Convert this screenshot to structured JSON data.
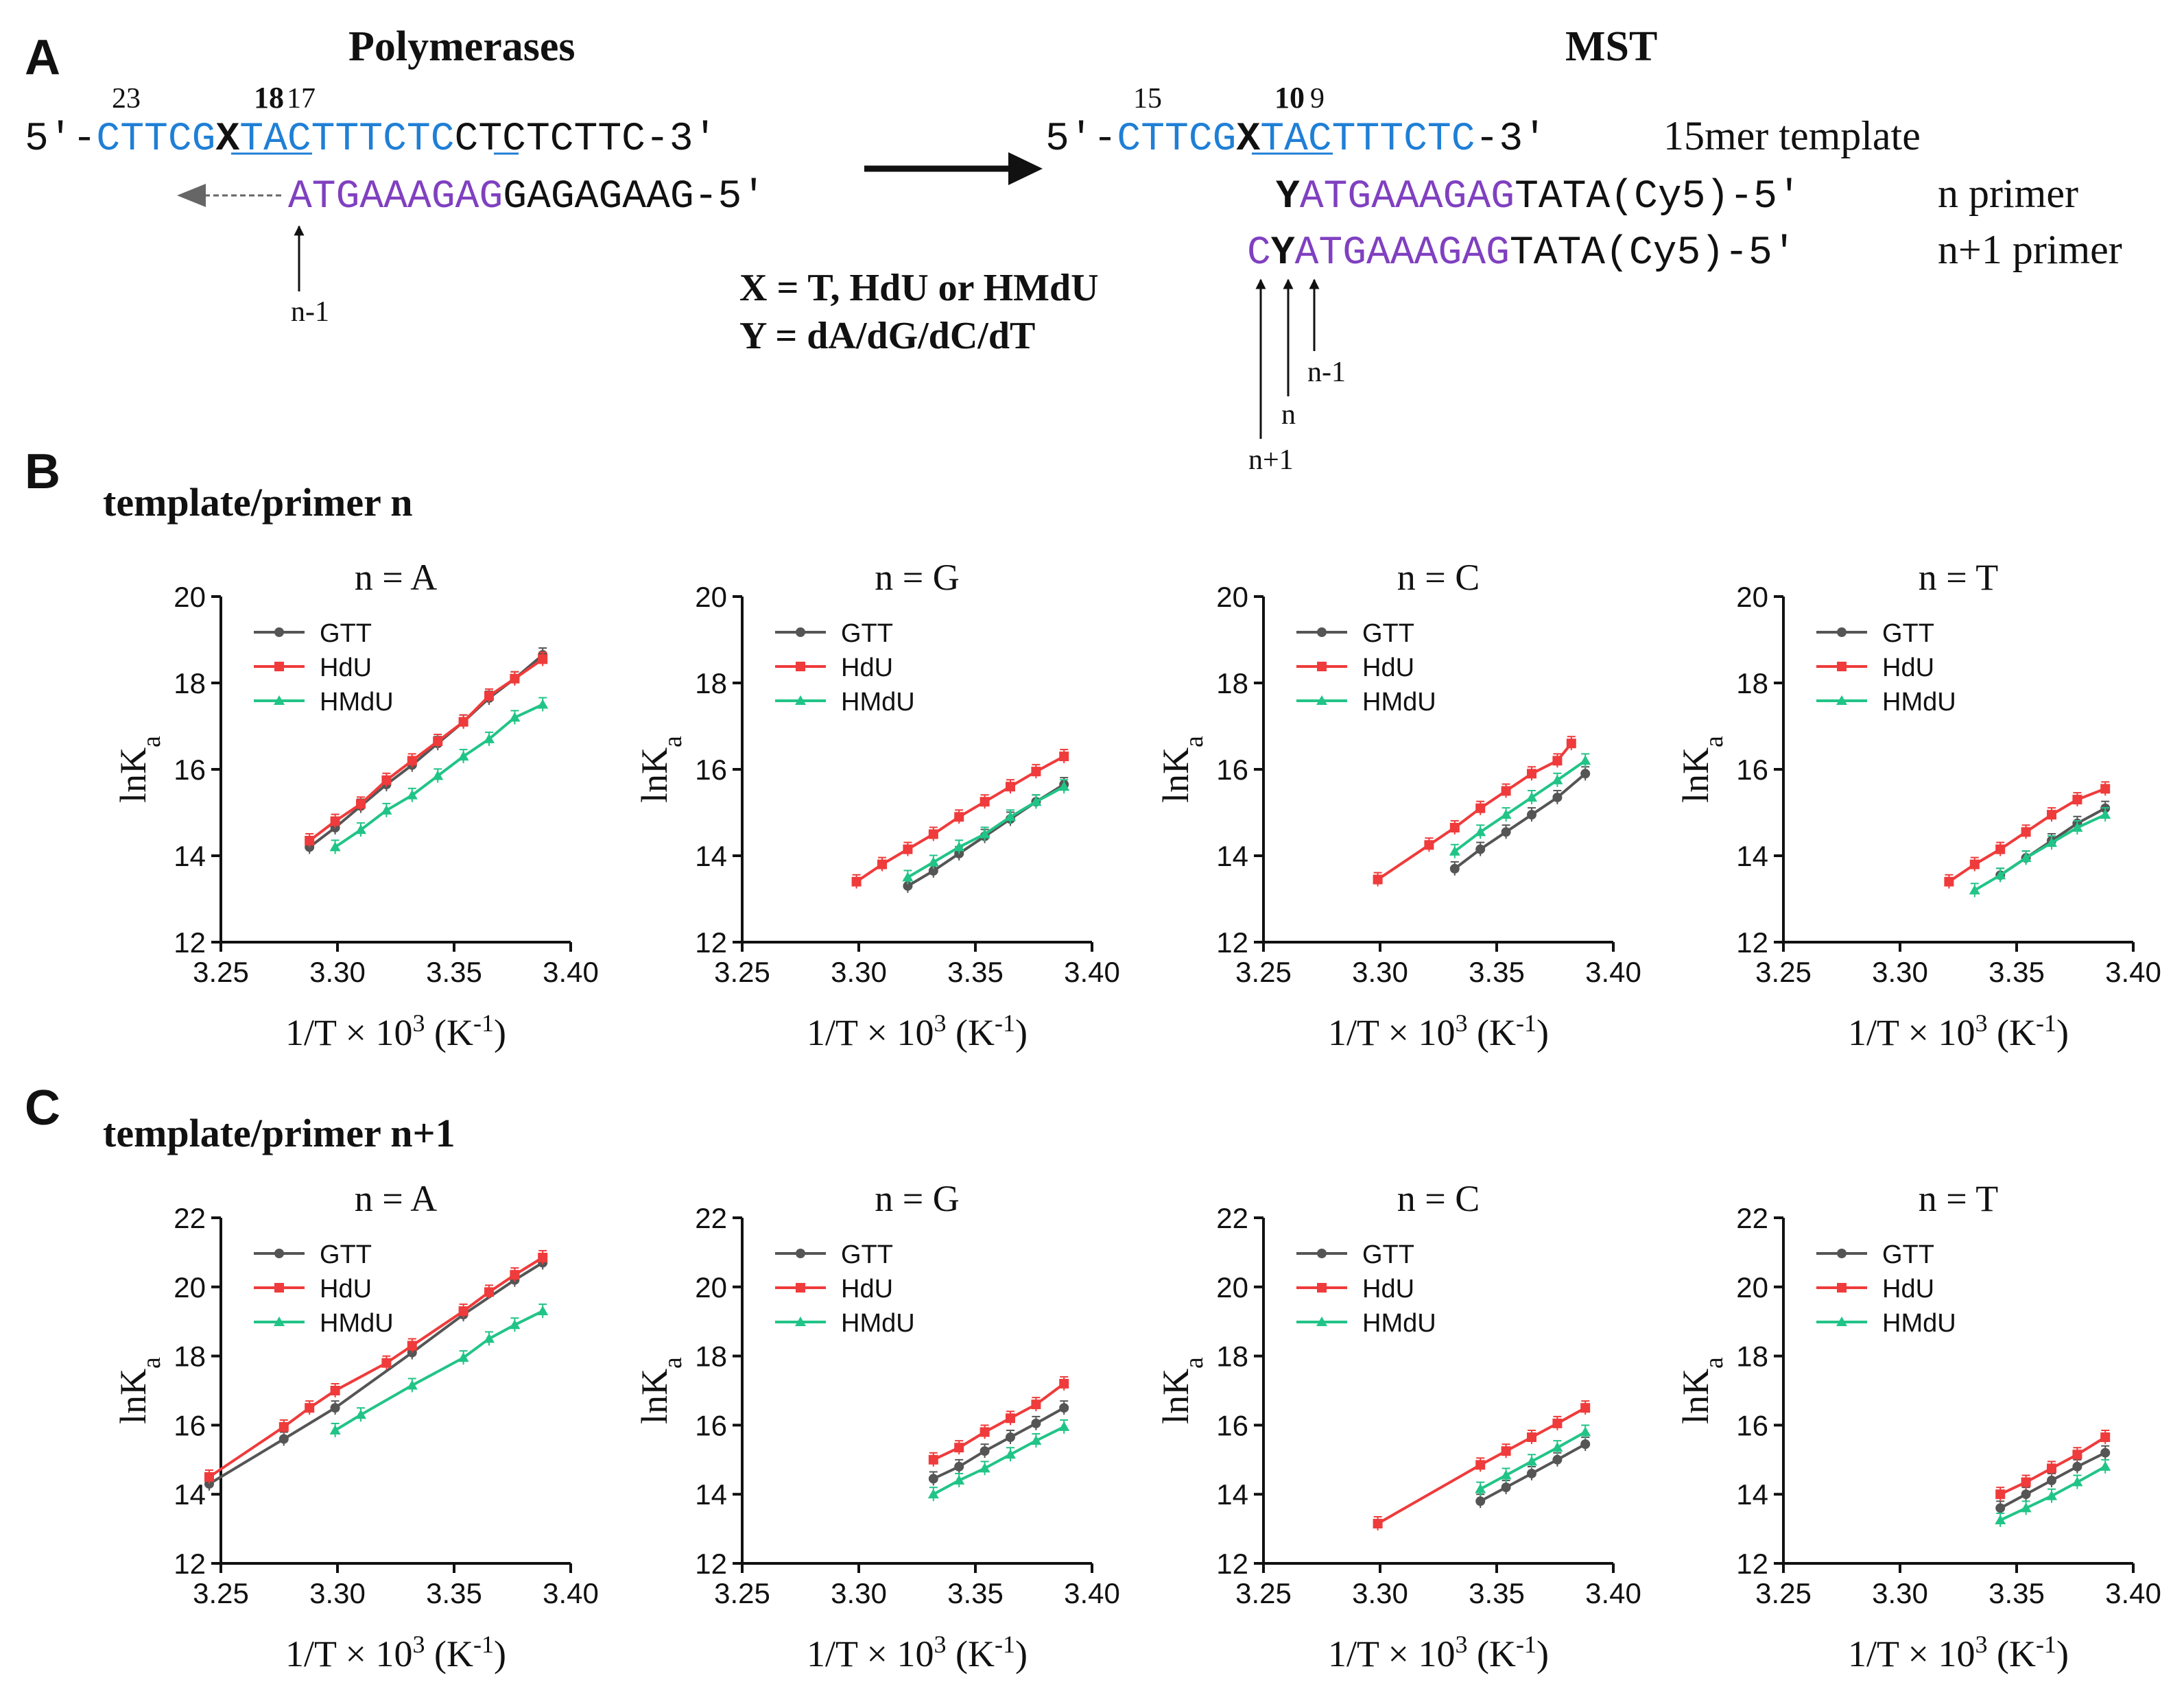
{
  "colors": {
    "gtt": "#555555",
    "hdu": "#ef3b3b",
    "hmdu": "#21c487",
    "blue": "#1f7fd6",
    "purple": "#8040c0",
    "black": "#111111"
  },
  "panelA": {
    "label": "A",
    "poly_title": "Polymerases",
    "mst_title": "MST",
    "poly": {
      "num23": "23",
      "num18": "18",
      "num17": "17",
      "t_prefix": "5'-",
      "t_blue1": "CTTCG",
      "t_x": "X",
      "t_blue2": "TACTTTCTC",
      "t_black": "CTCTCTTC-3'",
      "p_purple": "ATGAAAGAG",
      "p_black": "GAGAGAAG-5'",
      "arrow_label": "n-1"
    },
    "mst": {
      "num15": "15",
      "num10": "10",
      "num9": "9",
      "t_prefix": "5'-",
      "t_blue1": "CTTCG",
      "t_x": "X",
      "t_blue2": "TACTTTCTC",
      "t_black": "-3'",
      "t_desc": "15mer template",
      "n_y": "Y",
      "n_purple": "ATGAAAGAG",
      "n_black": "TATA(Cy5)-5'",
      "n_desc": "n primer",
      "n1_c": "C",
      "n1_y": "Y",
      "n1_purple": "ATGAAAGAG",
      "n1_black": "TATA(Cy5)-5'",
      "n1_desc": "n+1 primer",
      "lab_nm1": "n-1",
      "lab_n": "n",
      "lab_np1": "n+1"
    },
    "def_x": "X = T, HdU or HMdU",
    "def_y": "Y = dA/dG/dC/dT"
  },
  "panelB": {
    "label": "B",
    "title": "template/primer n"
  },
  "panelC": {
    "label": "C",
    "title": "template/primer n+1"
  },
  "chart_data": [
    {
      "type": "line",
      "panel": "B",
      "title": "n = A",
      "xlabel": "1/T × 10³ (K⁻¹)",
      "ylabel": "lnKa",
      "xlim": [
        3.25,
        3.4
      ],
      "ylim": [
        12,
        20
      ],
      "xticks": [
        "3.25",
        "3.30",
        "3.35",
        "3.40"
      ],
      "yticks": [
        "12",
        "14",
        "16",
        "18",
        "20"
      ],
      "series": [
        {
          "name": "GTT",
          "key": "gtt",
          "x": [
            3.288,
            3.299,
            3.31,
            3.321,
            3.332,
            3.343,
            3.354,
            3.365,
            3.376,
            3.388
          ],
          "y": [
            14.2,
            14.65,
            15.15,
            15.65,
            16.1,
            16.6,
            17.1,
            17.65,
            18.1,
            18.65
          ]
        },
        {
          "name": "HdU",
          "key": "hdu",
          "x": [
            3.288,
            3.299,
            3.31,
            3.321,
            3.332,
            3.343,
            3.354,
            3.365,
            3.376,
            3.388
          ],
          "y": [
            14.35,
            14.8,
            15.2,
            15.75,
            16.2,
            16.65,
            17.1,
            17.7,
            18.1,
            18.55
          ]
        },
        {
          "name": "HMdU",
          "key": "hmdu",
          "x": [
            3.299,
            3.31,
            3.321,
            3.332,
            3.343,
            3.354,
            3.365,
            3.376,
            3.388
          ],
          "y": [
            14.2,
            14.6,
            15.05,
            15.4,
            15.85,
            16.3,
            16.7,
            17.2,
            17.5
          ]
        }
      ]
    },
    {
      "type": "line",
      "panel": "B",
      "title": "n = G",
      "xlabel": "1/T × 10³ (K⁻¹)",
      "ylabel": "lnKa",
      "xlim": [
        3.25,
        3.4
      ],
      "ylim": [
        12,
        20
      ],
      "xticks": [
        "3.25",
        "3.30",
        "3.35",
        "3.40"
      ],
      "yticks": [
        "12",
        "14",
        "16",
        "18",
        "20"
      ],
      "series": [
        {
          "name": "GTT",
          "key": "gtt",
          "x": [
            3.321,
            3.332,
            3.343,
            3.354,
            3.365,
            3.376,
            3.388
          ],
          "y": [
            13.3,
            13.65,
            14.05,
            14.45,
            14.85,
            15.25,
            15.65
          ]
        },
        {
          "name": "HdU",
          "key": "hdu",
          "x": [
            3.299,
            3.31,
            3.321,
            3.332,
            3.343,
            3.354,
            3.365,
            3.376,
            3.388
          ],
          "y": [
            13.4,
            13.8,
            14.15,
            14.5,
            14.9,
            15.25,
            15.6,
            15.95,
            16.3
          ]
        },
        {
          "name": "HMdU",
          "key": "hmdu",
          "x": [
            3.321,
            3.332,
            3.343,
            3.354,
            3.365,
            3.376,
            3.388
          ],
          "y": [
            13.5,
            13.85,
            14.2,
            14.5,
            14.9,
            15.25,
            15.6
          ]
        }
      ]
    },
    {
      "type": "line",
      "panel": "B",
      "title": "n = C",
      "xlabel": "1/T × 10³ (K⁻¹)",
      "ylabel": "lnKa",
      "xlim": [
        3.25,
        3.4
      ],
      "ylim": [
        12,
        20
      ],
      "xticks": [
        "3.25",
        "3.30",
        "3.35",
        "3.40"
      ],
      "yticks": [
        "12",
        "14",
        "16",
        "18",
        "20"
      ],
      "series": [
        {
          "name": "GTT",
          "key": "gtt",
          "x": [
            3.332,
            3.343,
            3.354,
            3.365,
            3.376,
            3.388
          ],
          "y": [
            13.7,
            14.15,
            14.55,
            14.95,
            15.35,
            15.9
          ]
        },
        {
          "name": "HdU",
          "key": "hdu",
          "x": [
            3.299,
            3.321,
            3.332,
            3.343,
            3.354,
            3.365,
            3.376,
            3.382
          ],
          "y": [
            13.45,
            14.25,
            14.65,
            15.1,
            15.5,
            15.9,
            16.2,
            16.6
          ]
        },
        {
          "name": "HMdU",
          "key": "hmdu",
          "x": [
            3.332,
            3.343,
            3.354,
            3.365,
            3.376,
            3.388
          ],
          "y": [
            14.1,
            14.55,
            14.95,
            15.35,
            15.75,
            16.2
          ]
        }
      ]
    },
    {
      "type": "line",
      "panel": "B",
      "title": "n = T",
      "xlabel": "1/T × 10³ (K⁻¹)",
      "ylabel": "lnKa",
      "xlim": [
        3.25,
        3.4
      ],
      "ylim": [
        12,
        20
      ],
      "xticks": [
        "3.25",
        "3.30",
        "3.35",
        "3.40"
      ],
      "yticks": [
        "12",
        "14",
        "16",
        "18",
        "20"
      ],
      "series": [
        {
          "name": "GTT",
          "key": "gtt",
          "x": [
            3.343,
            3.354,
            3.365,
            3.376,
            3.388
          ],
          "y": [
            13.55,
            13.95,
            14.35,
            14.75,
            15.1
          ]
        },
        {
          "name": "HdU",
          "key": "hdu",
          "x": [
            3.321,
            3.332,
            3.343,
            3.354,
            3.365,
            3.376,
            3.388
          ],
          "y": [
            13.4,
            13.8,
            14.15,
            14.55,
            14.95,
            15.3,
            15.55
          ]
        },
        {
          "name": "HMdU",
          "key": "hmdu",
          "x": [
            3.332,
            3.343,
            3.354,
            3.365,
            3.376,
            3.388
          ],
          "y": [
            13.2,
            13.55,
            13.95,
            14.3,
            14.65,
            14.95
          ]
        }
      ]
    },
    {
      "type": "line",
      "panel": "C",
      "title": "n = A",
      "xlabel": "1/T × 10³ (K⁻¹)",
      "ylabel": "lnKa",
      "xlim": [
        3.25,
        3.4
      ],
      "ylim": [
        12,
        22
      ],
      "xticks": [
        "3.25",
        "3.30",
        "3.35",
        "3.40"
      ],
      "yticks": [
        "12",
        "14",
        "16",
        "18",
        "20",
        "22"
      ],
      "series": [
        {
          "name": "GTT",
          "key": "gtt",
          "x": [
            3.245,
            3.277,
            3.299,
            3.332,
            3.354,
            3.376,
            3.388
          ],
          "y": [
            14.3,
            15.6,
            16.5,
            18.1,
            19.2,
            20.2,
            20.7
          ]
        },
        {
          "name": "HdU",
          "key": "hdu",
          "x": [
            3.245,
            3.277,
            3.288,
            3.299,
            3.321,
            3.332,
            3.354,
            3.365,
            3.376,
            3.388
          ],
          "y": [
            14.5,
            15.95,
            16.5,
            17.0,
            17.8,
            18.3,
            19.3,
            19.85,
            20.35,
            20.85
          ]
        },
        {
          "name": "HMdU",
          "key": "hmdu",
          "x": [
            3.299,
            3.31,
            3.332,
            3.354,
            3.365,
            3.376,
            3.388
          ],
          "y": [
            15.85,
            16.3,
            17.15,
            17.95,
            18.5,
            18.9,
            19.3
          ]
        }
      ]
    },
    {
      "type": "line",
      "panel": "C",
      "title": "n = G",
      "xlabel": "1/T × 10³ (K⁻¹)",
      "ylabel": "lnKa",
      "xlim": [
        3.25,
        3.4
      ],
      "ylim": [
        12,
        22
      ],
      "xticks": [
        "3.25",
        "3.30",
        "3.35",
        "3.40"
      ],
      "yticks": [
        "12",
        "14",
        "16",
        "18",
        "20",
        "22"
      ],
      "series": [
        {
          "name": "GTT",
          "key": "gtt",
          "x": [
            3.332,
            3.343,
            3.354,
            3.365,
            3.376,
            3.388
          ],
          "y": [
            14.45,
            14.8,
            15.25,
            15.65,
            16.05,
            16.5
          ]
        },
        {
          "name": "HdU",
          "key": "hdu",
          "x": [
            3.332,
            3.343,
            3.354,
            3.365,
            3.376,
            3.388
          ],
          "y": [
            15.0,
            15.35,
            15.8,
            16.2,
            16.6,
            17.2
          ]
        },
        {
          "name": "HMdU",
          "key": "hmdu",
          "x": [
            3.332,
            3.343,
            3.354,
            3.365,
            3.376,
            3.388
          ],
          "y": [
            14.0,
            14.4,
            14.75,
            15.15,
            15.55,
            15.95
          ]
        }
      ]
    },
    {
      "type": "line",
      "panel": "C",
      "title": "n = C",
      "xlabel": "1/T × 10³ (K⁻¹)",
      "ylabel": "lnKa",
      "xlim": [
        3.25,
        3.4
      ],
      "ylim": [
        12,
        22
      ],
      "xticks": [
        "3.25",
        "3.30",
        "3.35",
        "3.40"
      ],
      "yticks": [
        "12",
        "14",
        "16",
        "18",
        "20",
        "22"
      ],
      "series": [
        {
          "name": "GTT",
          "key": "gtt",
          "x": [
            3.343,
            3.354,
            3.365,
            3.376,
            3.388
          ],
          "y": [
            13.8,
            14.2,
            14.6,
            15.0,
            15.45
          ]
        },
        {
          "name": "HdU",
          "key": "hdu",
          "x": [
            3.299,
            3.343,
            3.354,
            3.365,
            3.376,
            3.388
          ],
          "y": [
            13.15,
            14.85,
            15.25,
            15.65,
            16.05,
            16.5
          ]
        },
        {
          "name": "HMdU",
          "key": "hmdu",
          "x": [
            3.343,
            3.354,
            3.365,
            3.376,
            3.388
          ],
          "y": [
            14.15,
            14.55,
            14.95,
            15.35,
            15.8
          ]
        }
      ]
    },
    {
      "type": "line",
      "panel": "C",
      "title": "n = T",
      "xlabel": "1/T × 10³ (K⁻¹)",
      "ylabel": "lnKa",
      "xlim": [
        3.25,
        3.4
      ],
      "ylim": [
        12,
        22
      ],
      "xticks": [
        "3.25",
        "3.30",
        "3.35",
        "3.40"
      ],
      "yticks": [
        "12",
        "14",
        "16",
        "18",
        "20",
        "22"
      ],
      "series": [
        {
          "name": "GTT",
          "key": "gtt",
          "x": [
            3.343,
            3.354,
            3.365,
            3.376,
            3.388
          ],
          "y": [
            13.6,
            14.0,
            14.4,
            14.8,
            15.2
          ]
        },
        {
          "name": "HdU",
          "key": "hdu",
          "x": [
            3.343,
            3.354,
            3.365,
            3.376,
            3.388
          ],
          "y": [
            14.0,
            14.35,
            14.75,
            15.15,
            15.65
          ]
        },
        {
          "name": "HMdU",
          "key": "hmdu",
          "x": [
            3.343,
            3.354,
            3.365,
            3.376,
            3.388
          ],
          "y": [
            13.25,
            13.6,
            13.95,
            14.35,
            14.8
          ]
        }
      ]
    }
  ]
}
